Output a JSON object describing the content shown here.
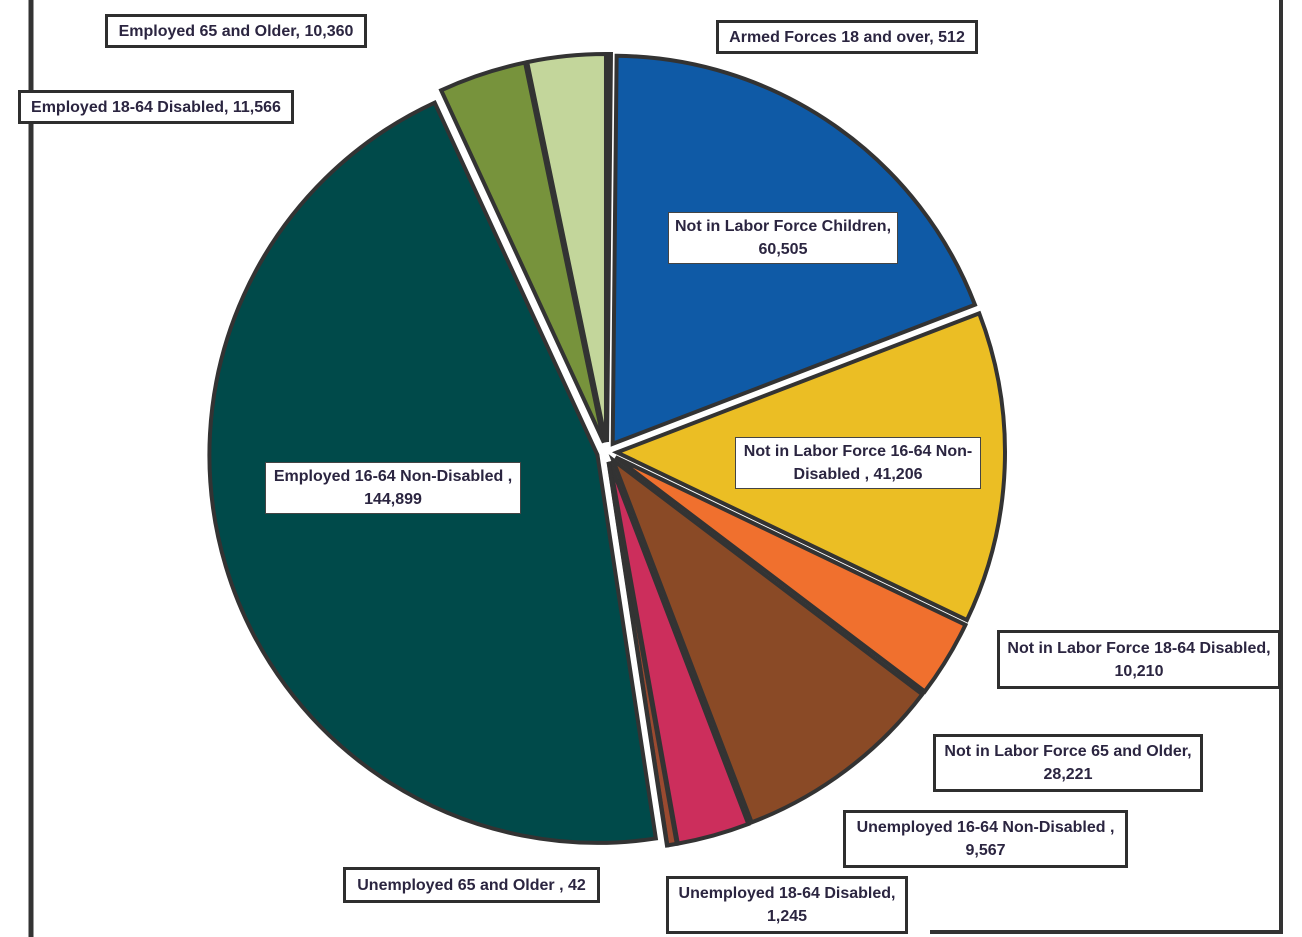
{
  "chart_data": {
    "type": "pie",
    "categories": [
      "Armed Forces 18  and over,",
      "Not in Labor Force Children,",
      "Not in Labor Force 16-64 Non-Disabled ,",
      "Not in Labor Force 18-64 Disabled,",
      "Not in Labor Force 65 and Older,",
      "Unemployed 16-64 Non-Disabled ,",
      "Unemployed 18-64 Disabled,",
      "Unemployed 65 and Older ,",
      "Employed 16-64 Non-Disabled ,",
      "Employed 18-64 Disabled,",
      "Employed 65 and Older,"
    ],
    "values": [
      512,
      60505,
      41206,
      10210,
      28221,
      9567,
      1245,
      42,
      144899,
      11566,
      10360
    ],
    "value_labels": [
      "512",
      "60,505",
      "41,206",
      "10,210",
      "28,221",
      "9,567",
      "1,245",
      "42",
      "144,899",
      "11,566",
      "10,360"
    ],
    "colors": [
      "#d9e4bf",
      "#0f5aa6",
      "#ebbe24",
      "#f0702e",
      "#8a4a26",
      "#cc2e5c",
      "#9a4a30",
      "#7a3a20",
      "#004a4a",
      "#77933c",
      "#c3d69b"
    ]
  }
}
